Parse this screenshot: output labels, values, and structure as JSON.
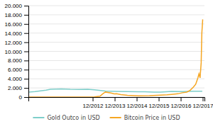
{
  "chart_data": {
    "type": "line",
    "series": [
      {
        "name": "Gold Outco in USD",
        "color": "#7ececa",
        "x": [
          2010.0,
          2010.3,
          2010.8,
          2011.0,
          2011.5,
          2011.9,
          2012.3,
          2012.7,
          2013.0,
          2013.5,
          2014.0,
          2014.5,
          2015.0,
          2015.3,
          2015.7,
          2016.0,
          2016.5,
          2017.0,
          2017.5,
          2017.9
        ],
        "values": [
          1100,
          1200,
          1500,
          1700,
          1800,
          1700,
          1680,
          1700,
          1600,
          1300,
          1250,
          1220,
          1180,
          1150,
          1100,
          1100,
          1250,
          1200,
          1280,
          1280
        ]
      },
      {
        "name": "Bitcoin Price in USD",
        "color": "#f5a623",
        "x": [
          2010.0,
          2011.0,
          2012.0,
          2012.8,
          2013.0,
          2013.25,
          2013.4,
          2013.5,
          2013.75,
          2013.9,
          2014.0,
          2014.2,
          2014.5,
          2015.0,
          2015.5,
          2016.0,
          2016.3,
          2016.5,
          2016.8,
          2017.0,
          2017.2,
          2017.35,
          2017.5,
          2017.6,
          2017.65,
          2017.7,
          2017.75,
          2017.8,
          2017.85,
          2017.88,
          2017.92
        ],
        "values": [
          0,
          5,
          10,
          12,
          50,
          200,
          800,
          1100,
          900,
          700,
          750,
          550,
          400,
          280,
          300,
          420,
          500,
          600,
          720,
          950,
          1100,
          1500,
          2200,
          2800,
          3500,
          4200,
          5100,
          4200,
          7500,
          14000,
          17000
        ]
      }
    ],
    "xlim": [
      2010.0,
      2018.0
    ],
    "xticks": [
      {
        "value": 2012.92,
        "label": "12/2012"
      },
      {
        "value": 2013.92,
        "label": "12/2013"
      },
      {
        "value": 2014.92,
        "label": "12/2014"
      },
      {
        "value": 2015.92,
        "label": "12/2015"
      },
      {
        "value": 2016.92,
        "label": "12/2016"
      },
      {
        "value": 2017.92,
        "label": "12/2017"
      }
    ],
    "ylim": [
      0,
      20000
    ],
    "yticks": [
      0,
      {
        "value": 2000,
        "label": "2.000"
      },
      {
        "value": 4000,
        "label": "4.000"
      },
      {
        "value": 6000,
        "label": "6.000"
      },
      {
        "value": 8000,
        "label": "8.000"
      },
      {
        "value": 10000,
        "label": "10.000"
      },
      {
        "value": 12000,
        "label": "12.000"
      },
      {
        "value": 14000,
        "label": "14.000"
      },
      {
        "value": 16000,
        "label": "16.000"
      },
      {
        "value": 18000,
        "label": "18.000"
      },
      {
        "value": 20000,
        "label": "20.000"
      }
    ],
    "grid": true,
    "legend": "bottom"
  }
}
